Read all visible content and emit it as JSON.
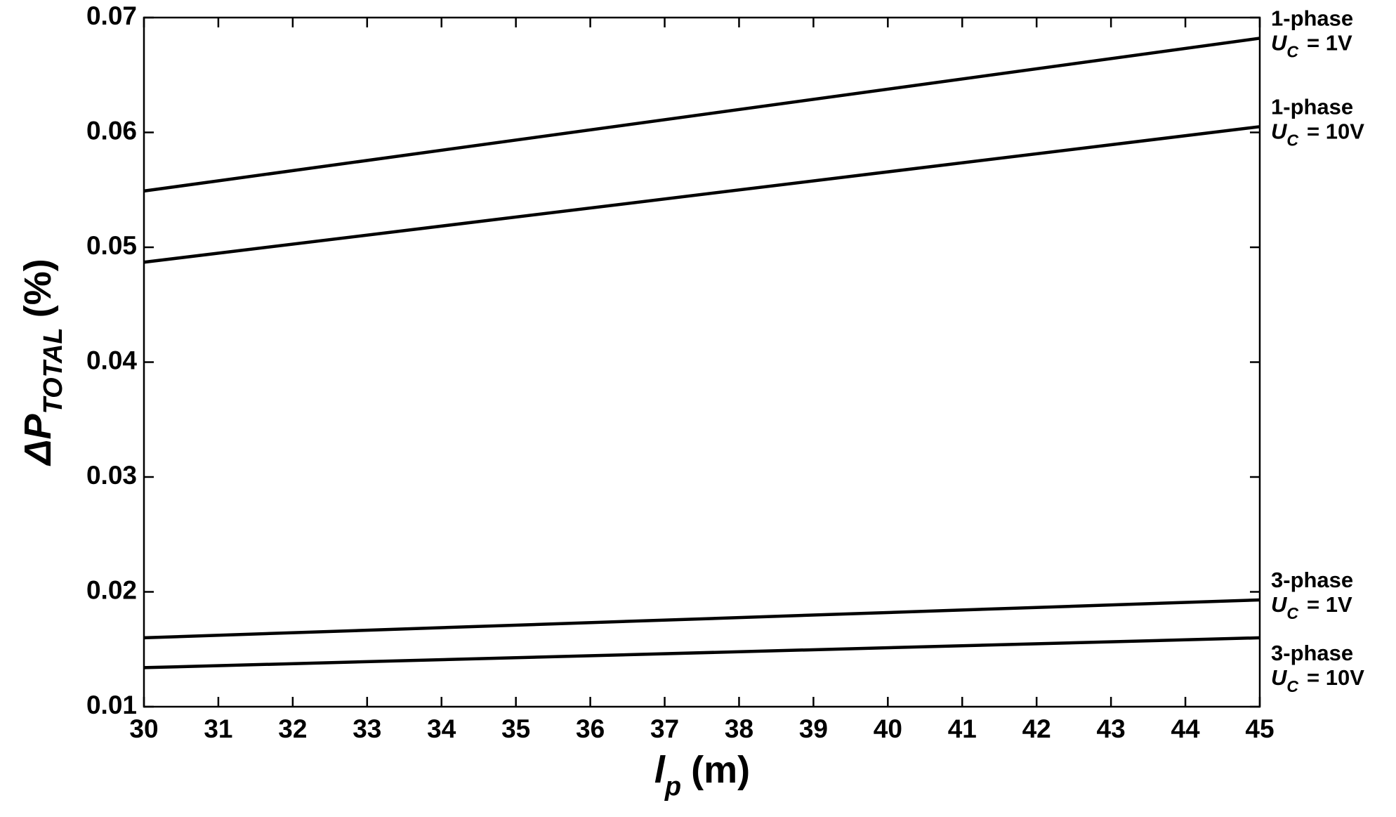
{
  "chart_data": {
    "type": "line",
    "y_label": {
      "symbol": "ΔP",
      "subscript": "TOTAL",
      "unit": "(%)"
    },
    "x_label": {
      "symbol": "l",
      "subscript": "p",
      "unit": "(m)"
    },
    "x": [
      30,
      45
    ],
    "series": [
      {
        "label": {
          "line1": "1-phase",
          "symbol": "U",
          "subscript": "C",
          "value": "= 1V"
        },
        "color": "#000000",
        "values": [
          0.0549,
          0.0682
        ]
      },
      {
        "label": {
          "line1": "1-phase",
          "symbol": "U",
          "subscript": "C",
          "value": "= 10V"
        },
        "color": "#000000",
        "values": [
          0.0487,
          0.0605
        ]
      },
      {
        "label": {
          "line1": "3-phase",
          "symbol": "U",
          "subscript": "C",
          "value": "= 1V"
        },
        "color": "#000000",
        "values": [
          0.016,
          0.0193
        ]
      },
      {
        "label": {
          "line1": "3-phase",
          "symbol": "U",
          "subscript": "C",
          "value": "= 10V"
        },
        "color": "#000000",
        "values": [
          0.0134,
          0.016
        ]
      }
    ],
    "xlim": [
      30,
      45
    ],
    "xticks": [
      30,
      31,
      32,
      33,
      34,
      35,
      36,
      37,
      38,
      39,
      40,
      41,
      42,
      43,
      44,
      45
    ],
    "ylim": [
      0.01,
      0.07
    ],
    "yticks": [
      0.01,
      0.02,
      0.03,
      0.04,
      0.05,
      0.06,
      0.07
    ],
    "grid": false
  }
}
